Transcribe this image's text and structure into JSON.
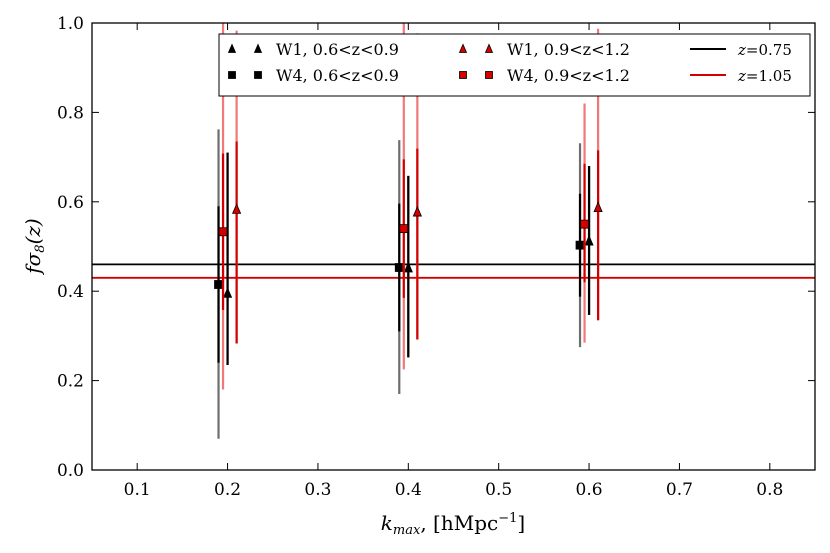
{
  "chart_data": {
    "type": "scatter",
    "title": "",
    "xlabel": "k_max, [hMpc^-1]",
    "xlabel_main": "k",
    "xlabel_sub": "max",
    "xlabel_unit": ", [hMpc",
    "xlabel_exp": "−1",
    "xlabel_close": "]",
    "ylabel": "fσ8(z)",
    "ylabel_f": "f",
    "ylabel_sigma": "σ",
    "ylabel_sub": "8",
    "ylabel_arg": "(z)",
    "xlim": [
      0.05,
      0.85
    ],
    "ylim": [
      0.0,
      1.0
    ],
    "xticks": [
      "0.1",
      "0.2",
      "0.3",
      "0.4",
      "0.5",
      "0.6",
      "0.7",
      "0.8"
    ],
    "yticks": [
      "0.0",
      "0.2",
      "0.4",
      "0.6",
      "0.8",
      "1.0"
    ],
    "grid": false,
    "legend_position": "top-right",
    "series": [
      {
        "name": "W1, 0.6<z<0.9",
        "marker": "triangle",
        "color": "#000000",
        "errcolor": "#6e6e6e",
        "x": [
          0.2,
          0.4,
          0.6
        ],
        "y": [
          0.395,
          0.452,
          0.512
        ],
        "yerr_lo": [
          0.16,
          0.2,
          0.165
        ],
        "yerr_hi": [
          0.315,
          0.206,
          0.168
        ],
        "inner_lo": [
          0.16,
          0.2,
          0.165
        ],
        "inner_hi": [
          0.315,
          0.206,
          0.168
        ]
      },
      {
        "name": "W4, 0.6<z<0.9",
        "marker": "square",
        "color": "#000000",
        "errcolor": "#6e6e6e",
        "x": [
          0.19,
          0.39,
          0.59
        ],
        "y": [
          0.415,
          0.453,
          0.503
        ],
        "yerr_lo": [
          0.345,
          0.283,
          0.228
        ],
        "yerr_hi": [
          0.347,
          0.285,
          0.228
        ],
        "inner_lo": [
          0.175,
          0.143,
          0.115
        ],
        "inner_hi": [
          0.175,
          0.143,
          0.115
        ]
      },
      {
        "name": "W1, 0.9<z<1.2",
        "marker": "triangle",
        "color": "#d40000",
        "errcolor": "#f07878",
        "x": [
          0.21,
          0.41,
          0.61
        ],
        "y": [
          0.583,
          0.577,
          0.587
        ],
        "yerr_lo": [
          0.3,
          0.285,
          0.252
        ],
        "yerr_hi": [
          0.4,
          0.4,
          0.4
        ],
        "inner_lo": [
          0.3,
          0.285,
          0.252
        ],
        "inner_hi": [
          0.152,
          0.142,
          0.128
        ]
      },
      {
        "name": "W4, 0.9<z<1.2",
        "marker": "square",
        "color": "#d40000",
        "errcolor": "#f07878",
        "x": [
          0.195,
          0.395,
          0.595
        ],
        "y": [
          0.533,
          0.54,
          0.55
        ],
        "yerr_lo": [
          0.353,
          0.315,
          0.265
        ],
        "yerr_hi": [
          0.467,
          0.46,
          0.27
        ],
        "inner_lo": [
          0.175,
          0.155,
          0.13
        ],
        "inner_hi": [
          0.175,
          0.155,
          0.135
        ]
      }
    ],
    "reference_lines": [
      {
        "name": "z=0.75",
        "label_var": "z",
        "label_val": "=0.75",
        "y": 0.46,
        "color": "#000000"
      },
      {
        "name": "z=1.05",
        "label_var": "z",
        "label_val": "=1.05",
        "y": 0.43,
        "color": "#d40000"
      }
    ]
  }
}
